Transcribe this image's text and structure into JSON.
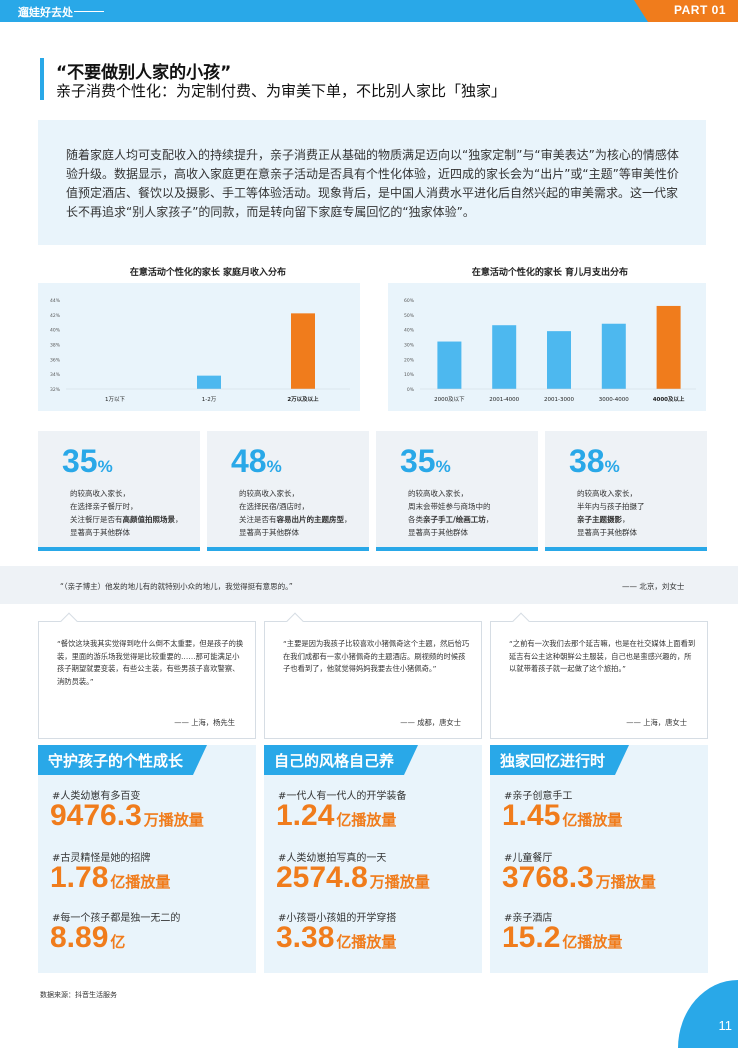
{
  "header": {
    "brand": "遛娃好去处",
    "part": "PART 01"
  },
  "title": "“不要做别人家的小孩”",
  "subtitle": "亲子消费个性化：为定制付费、为审美下单，不比别人家比「独家」",
  "intro": "随着家庭人均可支配收入的持续提升，亲子消费正从基础的物质满足迈向以“独家定制”与“审美表达”为核心的情感体验升级。数据显示，高收入家庭更在意亲子活动是否具有个性化体验，近四成的家长会为“出片”或“主题”等审美性价值预定酒店、餐饮以及摄影、手工等体验活动。现象背后，是中国人消费水平进化后自然兴起的审美需求。这一代家长不再追求“别人家孩子”的同款，而是转向留下家庭专属回忆的“独家体验”。",
  "chart_data": [
    {
      "type": "bar",
      "title": "在意活动个性化的家长 家庭月收入分布",
      "categories": [
        "1万以下",
        "1-2万",
        "2万以及以上"
      ],
      "values": [
        30.3,
        33.8,
        42.2
      ],
      "yticks": [
        "32%",
        "34%",
        "36%",
        "38%",
        "40%",
        "42%",
        "44%"
      ],
      "colors": [
        "#4db8ef",
        "#4db8ef",
        "#f07c1c"
      ],
      "highlight_bold": [
        false,
        false,
        true
      ]
    },
    {
      "type": "bar",
      "title": "在意活动个性化的家长 育儿月支出分布",
      "categories": [
        "2000及以下",
        "2001-4000",
        "2001-3000",
        "3000-4000",
        "4000及以上"
      ],
      "values": [
        32,
        43,
        39,
        44,
        56
      ],
      "ylim": [
        0,
        60
      ],
      "yticks": [
        "0%",
        "10%",
        "20%",
        "30%",
        "40%",
        "50%",
        "60%"
      ],
      "colors": [
        "#4db8ef",
        "#4db8ef",
        "#4db8ef",
        "#4db8ef",
        "#f07c1c"
      ],
      "highlight_bold": [
        false,
        false,
        false,
        false,
        true
      ]
    }
  ],
  "stats": [
    {
      "num": "35",
      "pct": "%",
      "l1": "的较高收入家长，",
      "l2": "在选择亲子餐厅时，",
      "l3a": "关注餐厅是否有",
      "l3b": "高颜值拍照场景",
      "l3c": "，",
      "l4": "显著高于其他群体"
    },
    {
      "num": "48",
      "pct": "%",
      "l1": "的较高收入家长，",
      "l2": "在选择民宿/酒店时，",
      "l3a": "关注是否有",
      "l3b": "容易出片的主题房型",
      "l3c": "，",
      "l4": "显著高于其他群体"
    },
    {
      "num": "35",
      "pct": "%",
      "l1": "的较高收入家长，",
      "l2": "周末会带娃参与商场中的",
      "l3a": "各类",
      "l3b": "亲子手工/绘画工坊",
      "l3c": "，",
      "l4": "显著高于其他群体"
    },
    {
      "num": "38",
      "pct": "%",
      "l1": "的较高收入家长，",
      "l2": "半年内与孩子拍摄了",
      "l3a": "",
      "l3b": "亲子主题摄影",
      "l3c": "，",
      "l4": "显著高于其他群体"
    }
  ],
  "quote_band": {
    "text": "“（亲子博主）他发的地儿有的就特别小众的地儿，我觉得挺有意思的。”",
    "source": "—— 北京，刘女士"
  },
  "quotes": [
    {
      "text": "“餐饮这块我其实觉得到吃什么倒不太重要，但是孩子的换装，里面的游乐场我觉得是比较重要的……那可能满足小孩子期望就要变装，有些公主装，有些男孩子喜欢警察、消防员装。”",
      "source": "—— 上海，杨先生"
    },
    {
      "text": "“主要是因为我孩子比较喜欢小猪佩奇这个主题，然后恰巧在我们成都有一家小猪佩奇的主题酒店。刷视频的时候孩子也看到了，他就觉得妈妈我要去住小猪佩奇。”",
      "source": "—— 成都，唐女士"
    },
    {
      "text": "“之前有一次我们去那个延吉嘛，也是在社交媒体上面看到延吉有公主这种朝鲜公主服装，自己也是蛮感兴趣的，所以就带着孩子就一起做了这个旅拍。”",
      "source": "—— 上海，唐女士"
    }
  ],
  "panels": [
    {
      "title": "守护孩子的个性成长",
      "items": [
        {
          "tag": "#人类幼崽有多百变",
          "num": "9476.3",
          "unit": "万播放量"
        },
        {
          "tag": "#古灵精怪是她的招牌",
          "num": "1.78",
          "unit": "亿播放量"
        },
        {
          "tag": "#每一个孩子都是独一无二的",
          "num": "8.89",
          "unit": "亿"
        }
      ]
    },
    {
      "title": "自己的风格自己养",
      "items": [
        {
          "tag": "#一代人有一代人的开学装备",
          "num": "1.24",
          "unit": "亿播放量"
        },
        {
          "tag": "#人类幼崽拍写真的一天",
          "num": "2574.8",
          "unit": "万播放量"
        },
        {
          "tag": "#小孩哥小孩姐的开学穿搭",
          "num": "3.38",
          "unit": "亿播放量"
        }
      ]
    },
    {
      "title": "独家回忆进行时",
      "items": [
        {
          "tag": "#亲子创意手工",
          "num": "1.45",
          "unit": "亿播放量"
        },
        {
          "tag": "#儿童餐厅",
          "num": "3768.3",
          "unit": "万播放量"
        },
        {
          "tag": "#亲子酒店",
          "num": "15.2",
          "unit": "亿播放量"
        }
      ]
    }
  ],
  "source": "数据来源：抖音生活服务",
  "page_num": "11",
  "colors": {
    "blue": "#29a8e8",
    "orange": "#f07c1c",
    "light_bg": "#e9f4fb"
  }
}
